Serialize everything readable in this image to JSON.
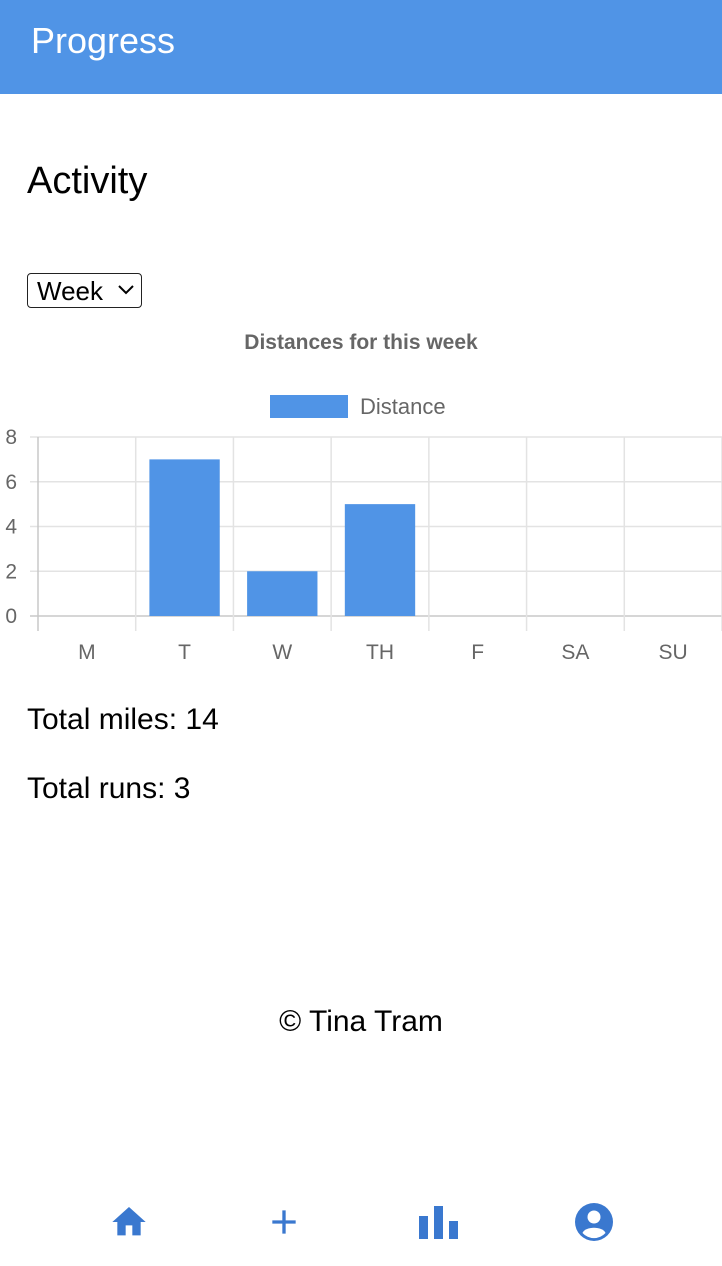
{
  "header": {
    "title": "Progress"
  },
  "page": {
    "heading": "Activity"
  },
  "period_select": {
    "selected": "Week",
    "icon": "chevron-down-icon"
  },
  "chart_data": {
    "type": "bar",
    "title": "Distances for this week",
    "categories": [
      "M",
      "T",
      "W",
      "TH",
      "F",
      "SA",
      "SU"
    ],
    "series": [
      {
        "name": "Distance",
        "values": [
          0,
          7,
          2,
          5,
          0,
          0,
          0
        ]
      }
    ],
    "ylim": [
      0,
      8
    ],
    "yticks": [
      "0",
      "2",
      "4",
      "6",
      "8"
    ],
    "grid": true,
    "legend": "top",
    "color": "#5094e6"
  },
  "stats": {
    "total_miles": "Total miles: 14",
    "total_runs": "Total runs: 3"
  },
  "footer": {
    "text": "© Tina Tram"
  },
  "nav": {
    "color": "#3a78cf",
    "items": [
      {
        "icon": "home-icon"
      },
      {
        "icon": "plus-icon"
      },
      {
        "icon": "bar-chart-icon"
      },
      {
        "icon": "account-icon"
      }
    ]
  },
  "colors": {
    "header": "#5094e6",
    "accent": "#3a78cf"
  }
}
